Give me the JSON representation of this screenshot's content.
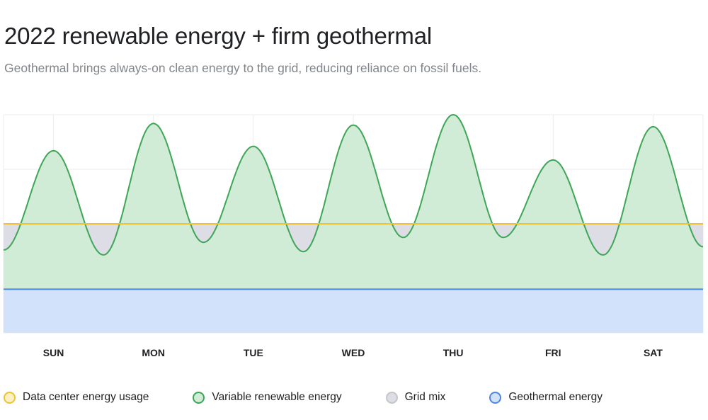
{
  "title": "2022 renewable energy + firm geothermal",
  "subtitle": "Geothermal brings always-on clean energy to the grid, reducing reliance on fossil fuels.",
  "colors": {
    "data_center": "#f2c12e",
    "data_center_fill": "#fdf0c2",
    "renewable_line": "#3fa657",
    "renewable_fill": "#d0ebd6",
    "grid_mix": "#dcdde5",
    "grid_mix_border": "#c4c6cc",
    "geothermal_line": "#4a86e8",
    "geothermal_fill": "#d2e2fb",
    "grid": "#ececec"
  },
  "chart_data": {
    "type": "area",
    "title": "2022 renewable energy + firm geothermal",
    "xlabel": "",
    "ylabel": "",
    "categories": [
      "SUN",
      "MON",
      "TUE",
      "WED",
      "THU",
      "FRI",
      "SAT"
    ],
    "xlim": [
      -0.5,
      6.5
    ],
    "ylim": [
      0,
      4
    ],
    "grid": true,
    "legend_position": "bottom",
    "series": [
      {
        "name": "Data center energy usage",
        "type": "line",
        "x": [
          -0.5,
          6.5
        ],
        "y": [
          2.0,
          2.0
        ]
      },
      {
        "name": "Variable renewable energy",
        "type": "area",
        "x": [
          -0.5,
          0,
          0.5,
          1,
          1.5,
          2,
          2.5,
          3,
          3.5,
          4,
          4.5,
          5,
          5.5,
          6,
          6.5
        ],
        "y": [
          1.52,
          3.34,
          1.43,
          3.84,
          1.66,
          3.42,
          1.49,
          3.81,
          1.75,
          4.0,
          1.75,
          3.17,
          1.43,
          3.78,
          1.58
        ]
      },
      {
        "name": "Grid mix",
        "type": "area"
      },
      {
        "name": "Geothermal energy",
        "type": "area",
        "x": [
          -0.5,
          6.5
        ],
        "y": [
          0.8,
          0.8
        ]
      }
    ]
  },
  "legend": [
    {
      "label": "Data center energy usage",
      "key": "data_center"
    },
    {
      "label": "Variable renewable energy",
      "key": "renewable"
    },
    {
      "label": "Grid mix",
      "key": "grid_mix"
    },
    {
      "label": "Geothermal energy",
      "key": "geothermal"
    }
  ]
}
